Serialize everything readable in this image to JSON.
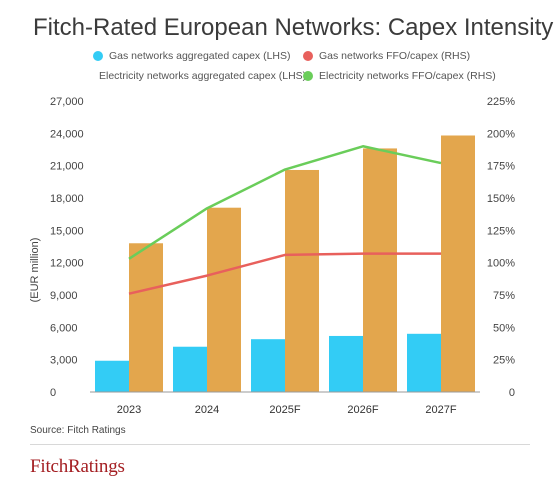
{
  "colors": {
    "gas_capex": "#33ccf5",
    "elec_capex": "#e3a64d",
    "gas_ffo": "#e8605c",
    "elec_ffo": "#6acd5a",
    "axis": "#555555",
    "logo": "#a41e22"
  },
  "source": "Source: Fitch Ratings",
  "logo_text": "FitchRatings",
  "chart_data": {
    "type": "bar",
    "title": "Fitch-Rated European Networks: Capex Intensity",
    "ylabel": "(EUR million)",
    "categories": [
      "2023",
      "2024",
      "2025F",
      "2026F",
      "2027F"
    ],
    "ylim": [
      0,
      27000
    ],
    "y2lim": [
      0,
      225
    ],
    "yticks": [
      "0",
      "3,000",
      "6,000",
      "9,000",
      "12,000",
      "15,000",
      "18,000",
      "21,000",
      "24,000",
      "27,000"
    ],
    "y2ticks": [
      "0",
      "25%",
      "50%",
      "75%",
      "100%",
      "125%",
      "150%",
      "175%",
      "200%",
      "225%"
    ],
    "grid": false,
    "legend_position": "top",
    "series": [
      {
        "name": "Gas networks aggregated capex (LHS)",
        "type": "bar",
        "axis": "left",
        "values": [
          2900,
          4200,
          4900,
          5200,
          5400
        ]
      },
      {
        "name": "Gas networks FFO/capex (RHS)",
        "type": "line",
        "axis": "right",
        "values": [
          76,
          90,
          106,
          107,
          107
        ]
      },
      {
        "name": "Electricity networks aggregated capex (LHS)",
        "type": "bar",
        "axis": "left",
        "values": [
          13800,
          17100,
          20600,
          22600,
          23800
        ]
      },
      {
        "name": "Electricity networks FFO/capex (RHS)",
        "type": "line",
        "axis": "right",
        "values": [
          103,
          142,
          172,
          190,
          177
        ]
      }
    ]
  }
}
